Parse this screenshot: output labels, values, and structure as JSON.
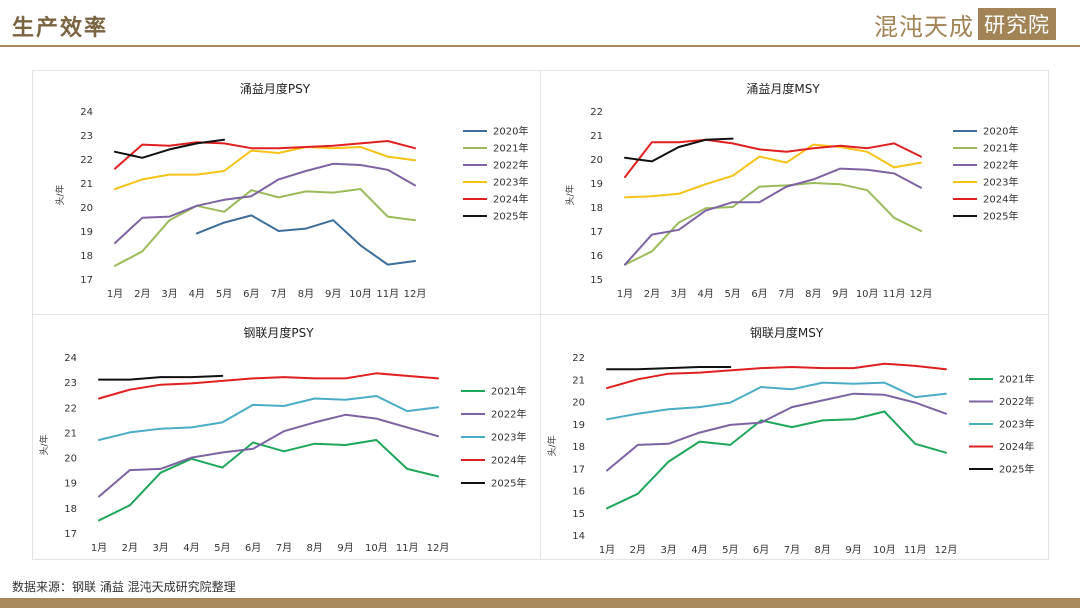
{
  "header": {
    "title": "生产效率"
  },
  "logo": {
    "text": "混沌天成",
    "box_text": "研究院"
  },
  "footer": {
    "source": "数据来源：钢联 涌益 混沌天成研究院整理"
  },
  "colors": {
    "2020年": "#3d6e99",
    "2021年": "#9bbb59",
    "2021年_gl": "#1ea65a",
    "2022年": "#7e63a3",
    "2023年": "#f6c316",
    "2023年_gl": "#4bacc6",
    "2024年": "#e02020",
    "2025年": "#111111"
  },
  "chart_data": [
    {
      "type": "line",
      "title": "涌益月度PSY",
      "ylabel": "头/年",
      "xlabel": "",
      "ylim": [
        17,
        24
      ],
      "yticks": [
        17,
        18,
        19,
        20,
        21,
        22,
        23,
        24
      ],
      "categories": [
        "1月",
        "2月",
        "3月",
        "4月",
        "5月",
        "6月",
        "7月",
        "8月",
        "9月",
        "10月",
        "11月",
        "12月"
      ],
      "legend": "right",
      "grid": false,
      "series": [
        {
          "name": "2020年",
          "color": "#3d6e99",
          "values": [
            null,
            null,
            null,
            18.9,
            19.35,
            19.65,
            19.0,
            19.1,
            19.45,
            18.4,
            17.6,
            17.75
          ]
        },
        {
          "name": "2021年",
          "color": "#9bbb59",
          "values": [
            17.55,
            18.15,
            19.45,
            20.05,
            19.8,
            20.7,
            20.4,
            20.65,
            20.6,
            20.75,
            19.6,
            19.45
          ]
        },
        {
          "name": "2022年",
          "color": "#7e63a3",
          "values": [
            18.5,
            19.55,
            19.6,
            20.05,
            20.3,
            20.45,
            21.15,
            21.5,
            21.8,
            21.75,
            21.55,
            20.9
          ]
        },
        {
          "name": "2023年",
          "color": "#f6c316",
          "values": [
            20.75,
            21.15,
            21.35,
            21.35,
            21.5,
            22.35,
            22.25,
            22.5,
            22.45,
            22.5,
            22.1,
            21.95
          ]
        },
        {
          "name": "2024年",
          "color": "#e02020",
          "values": [
            21.6,
            22.6,
            22.55,
            22.7,
            22.65,
            22.45,
            22.45,
            22.5,
            22.55,
            22.65,
            22.75,
            22.45
          ]
        },
        {
          "name": "2025年",
          "color": "#111111",
          "values": [
            22.3,
            22.05,
            22.4,
            22.65,
            22.8,
            null,
            null,
            null,
            null,
            null,
            null,
            null
          ]
        }
      ]
    },
    {
      "type": "line",
      "title": "涌益月度MSY",
      "ylabel": "头/年",
      "xlabel": "",
      "ylim": [
        15,
        22
      ],
      "yticks": [
        15,
        16,
        17,
        18,
        19,
        20,
        21,
        22
      ],
      "categories": [
        "1月",
        "2月",
        "3月",
        "4月",
        "5月",
        "6月",
        "7月",
        "8月",
        "9月",
        "10月",
        "11月",
        "12月"
      ],
      "legend": "right",
      "grid": false,
      "series": [
        {
          "name": "2020年",
          "color": "#3d6e99",
          "values": [
            null,
            null,
            null,
            null,
            null,
            null,
            null,
            null,
            null,
            null,
            null,
            null
          ]
        },
        {
          "name": "2021年",
          "color": "#9bbb59",
          "values": [
            15.6,
            16.15,
            17.35,
            17.95,
            18.0,
            18.85,
            18.9,
            19.0,
            18.95,
            18.7,
            17.55,
            17.0
          ]
        },
        {
          "name": "2022年",
          "color": "#7e63a3",
          "values": [
            15.6,
            16.85,
            17.05,
            17.85,
            18.2,
            18.2,
            18.85,
            19.15,
            19.6,
            19.55,
            19.4,
            18.8
          ]
        },
        {
          "name": "2023年",
          "color": "#f6c316",
          "values": [
            18.4,
            18.45,
            18.55,
            18.95,
            19.3,
            20.1,
            19.85,
            20.6,
            20.5,
            20.3,
            19.65,
            19.85
          ]
        },
        {
          "name": "2024年",
          "color": "#e02020",
          "values": [
            19.25,
            20.7,
            20.7,
            20.8,
            20.65,
            20.4,
            20.3,
            20.45,
            20.55,
            20.45,
            20.65,
            20.1
          ]
        },
        {
          "name": "2025年",
          "color": "#111111",
          "values": [
            20.05,
            19.9,
            20.5,
            20.8,
            20.85,
            null,
            null,
            null,
            null,
            null,
            null,
            null
          ]
        }
      ]
    },
    {
      "type": "line",
      "title": "钢联月度PSY",
      "ylabel": "头/年",
      "xlabel": "",
      "ylim": [
        17,
        24
      ],
      "yticks": [
        17,
        18,
        19,
        20,
        21,
        22,
        23,
        24
      ],
      "categories": [
        "1月",
        "2月",
        "3月",
        "4月",
        "5月",
        "6月",
        "7月",
        "8月",
        "9月",
        "10月",
        "11月",
        "12月"
      ],
      "legend": "right",
      "grid": false,
      "series": [
        {
          "name": "2021年",
          "color": "#1ea65a",
          "values": [
            17.5,
            18.1,
            19.4,
            19.95,
            19.6,
            20.6,
            20.25,
            20.55,
            20.5,
            20.7,
            19.55,
            19.25
          ]
        },
        {
          "name": "2022年",
          "color": "#7e63a3",
          "values": [
            18.45,
            19.5,
            19.55,
            20.0,
            20.2,
            20.35,
            21.05,
            21.4,
            21.7,
            21.55,
            21.2,
            20.85
          ]
        },
        {
          "name": "2023年",
          "color": "#4bacc6",
          "values": [
            20.7,
            21.0,
            21.15,
            21.2,
            21.4,
            22.1,
            22.05,
            22.35,
            22.3,
            22.45,
            21.85,
            22.0
          ]
        },
        {
          "name": "2024年",
          "color": "#e02020",
          "values": [
            22.35,
            22.7,
            22.9,
            22.95,
            23.05,
            23.15,
            23.2,
            23.15,
            23.15,
            23.35,
            23.25,
            23.15
          ]
        },
        {
          "name": "2025年",
          "color": "#111111",
          "values": [
            23.1,
            23.1,
            23.2,
            23.2,
            23.25,
            null,
            null,
            null,
            null,
            null,
            null,
            null
          ]
        }
      ]
    },
    {
      "type": "line",
      "title": "钢联月度MSY",
      "ylabel": "头/年",
      "xlabel": "",
      "ylim": [
        14,
        22
      ],
      "yticks": [
        14,
        15,
        16,
        17,
        18,
        19,
        20,
        21,
        22
      ],
      "categories": [
        "1月",
        "2月",
        "3月",
        "4月",
        "5月",
        "6月",
        "7月",
        "8月",
        "9月",
        "10月",
        "11月",
        "12月"
      ],
      "legend": "right",
      "grid": false,
      "series": [
        {
          "name": "2021年",
          "color": "#1ea65a",
          "values": [
            15.2,
            15.85,
            17.3,
            18.2,
            18.05,
            19.15,
            18.85,
            19.15,
            19.2,
            19.55,
            18.1,
            17.7
          ]
        },
        {
          "name": "2022年",
          "color": "#7e63a3",
          "values": [
            16.9,
            18.05,
            18.1,
            18.6,
            18.95,
            19.05,
            19.75,
            20.05,
            20.35,
            20.3,
            19.95,
            19.45
          ]
        },
        {
          "name": "2023年",
          "color": "#4bacc6",
          "values": [
            19.2,
            19.45,
            19.65,
            19.75,
            19.95,
            20.65,
            20.55,
            20.85,
            20.8,
            20.85,
            20.2,
            20.35
          ]
        },
        {
          "name": "2024年",
          "color": "#e02020",
          "values": [
            20.6,
            21.0,
            21.25,
            21.3,
            21.4,
            21.5,
            21.55,
            21.5,
            21.5,
            21.7,
            21.6,
            21.45
          ]
        },
        {
          "name": "2025年",
          "color": "#111111",
          "values": [
            21.45,
            21.45,
            21.5,
            21.55,
            21.55,
            null,
            null,
            null,
            null,
            null,
            null,
            null
          ]
        }
      ]
    }
  ]
}
